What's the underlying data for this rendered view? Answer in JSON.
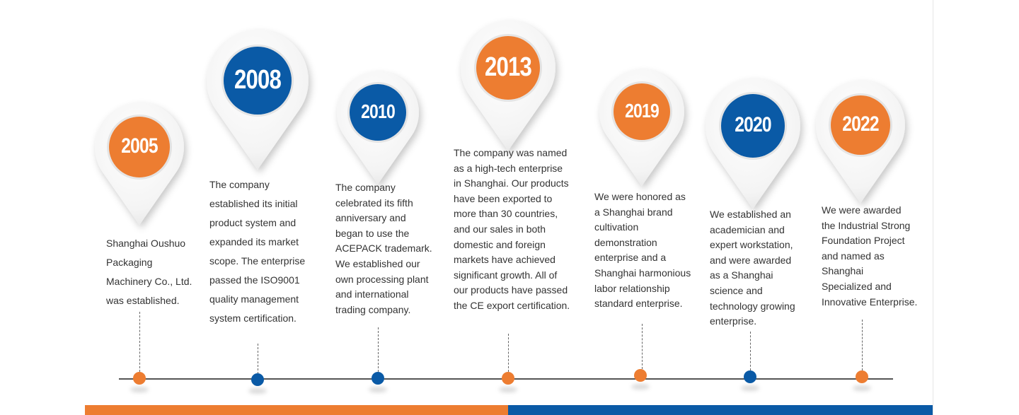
{
  "colors": {
    "orange": "#ed7d31",
    "blue": "#0a5aa6",
    "axis": "#555555",
    "text": "#333333"
  },
  "milestones": [
    {
      "year": "2005",
      "color": "orange",
      "lines": [
        "Shanghai Oushuo",
        "Packaging",
        "Machinery Co., Ltd.",
        "was established."
      ]
    },
    {
      "year": "2008",
      "color": "blue",
      "lines": [
        "The company",
        "established its initial",
        "product system and",
        "expanded its market",
        "scope. The enterprise",
        "passed the ISO9001",
        "quality management",
        "system certification."
      ]
    },
    {
      "year": "2010",
      "color": "blue",
      "lines": [
        "The company",
        "celebrated its fifth",
        "anniversary and",
        "began to use the",
        "ACEPACK trademark.",
        "We established our",
        "own processing plant",
        "and international",
        "trading company."
      ]
    },
    {
      "year": "2013",
      "color": "orange",
      "lines": [
        "The company was named",
        "as a high-tech enterprise",
        "in Shanghai. Our products",
        "have been exported to",
        "more than 30 countries,",
        "and our sales in both",
        "domestic and foreign",
        "markets have achieved",
        "significant growth. All of",
        "our products have passed",
        "the CE export certification."
      ]
    },
    {
      "year": "2019",
      "color": "orange",
      "lines": [
        "We were honored as",
        "a Shanghai brand",
        "cultivation",
        "demonstration",
        "enterprise and a",
        "Shanghai harmonious",
        "labor relationship",
        "standard enterprise."
      ]
    },
    {
      "year": "2020",
      "color": "blue",
      "lines": [
        "We established an",
        "academician and",
        "expert workstation,",
        "and were awarded",
        "as a Shanghai",
        "science and",
        "technology growing",
        "enterprise."
      ]
    },
    {
      "year": "2022",
      "color": "orange",
      "lines": [
        "We were awarded",
        "the Industrial Strong",
        "Foundation Project",
        "and named as",
        "Shanghai",
        "Specialized and",
        "Innovative Enterprise."
      ]
    }
  ]
}
